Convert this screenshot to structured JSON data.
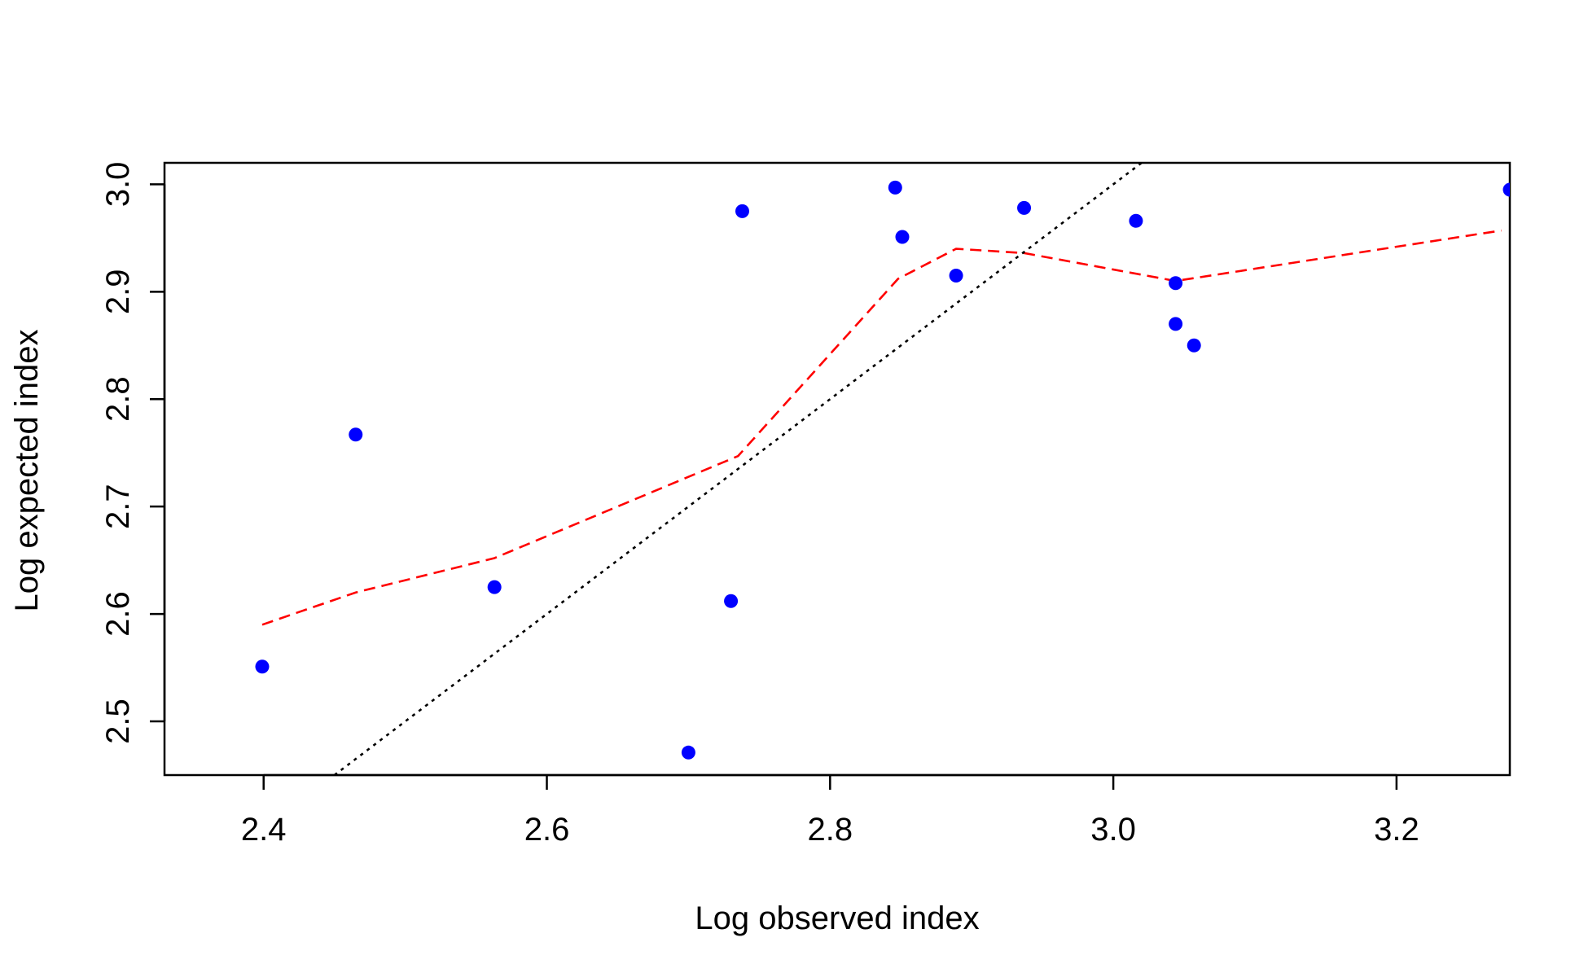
{
  "chart_data": {
    "type": "scatter",
    "title": "",
    "xlabel": "Log observed index",
    "ylabel": "Log expected index",
    "xlim": [
      2.33,
      3.28
    ],
    "ylim": [
      2.45,
      3.02
    ],
    "x_ticks": [
      2.4,
      2.6,
      2.8,
      3.0,
      3.2
    ],
    "x_tick_labels": [
      "2.4",
      "2.6",
      "2.8",
      "3.0",
      "3.2"
    ],
    "y_ticks": [
      2.5,
      2.6,
      2.7,
      2.8,
      2.9,
      3.0
    ],
    "y_tick_labels": [
      "2.5",
      "2.6",
      "2.7",
      "2.8",
      "2.9",
      "3.0"
    ],
    "grid": false,
    "series": [
      {
        "kind": "points",
        "color": "#0000ff",
        "points": [
          {
            "x": 2.399,
            "y": 2.551
          },
          {
            "x": 2.465,
            "y": 2.767
          },
          {
            "x": 2.563,
            "y": 2.625
          },
          {
            "x": 2.7,
            "y": 2.471
          },
          {
            "x": 2.73,
            "y": 2.612
          },
          {
            "x": 2.738,
            "y": 2.975
          },
          {
            "x": 2.846,
            "y": 2.997
          },
          {
            "x": 2.851,
            "y": 2.951
          },
          {
            "x": 2.889,
            "y": 2.915
          },
          {
            "x": 2.937,
            "y": 2.978
          },
          {
            "x": 3.016,
            "y": 2.966
          },
          {
            "x": 3.044,
            "y": 2.908
          },
          {
            "x": 3.044,
            "y": 2.87
          },
          {
            "x": 3.057,
            "y": 2.85
          },
          {
            "x": 3.28,
            "y": 2.995
          }
        ]
      },
      {
        "kind": "smooth-line",
        "color": "#ff0000",
        "line_style": "dashed",
        "points": [
          {
            "x": 2.399,
            "y": 2.59
          },
          {
            "x": 2.465,
            "y": 2.62
          },
          {
            "x": 2.563,
            "y": 2.652
          },
          {
            "x": 2.735,
            "y": 2.747
          },
          {
            "x": 2.848,
            "y": 2.912
          },
          {
            "x": 2.889,
            "y": 2.94
          },
          {
            "x": 2.937,
            "y": 2.936
          },
          {
            "x": 3.044,
            "y": 2.91
          },
          {
            "x": 3.274,
            "y": 2.957
          }
        ]
      },
      {
        "kind": "reference-line",
        "color": "#000000",
        "line_style": "dotted",
        "points": [
          {
            "x": 2.45,
            "y": 2.45
          },
          {
            "x": 3.02,
            "y": 3.02
          }
        ]
      }
    ]
  }
}
